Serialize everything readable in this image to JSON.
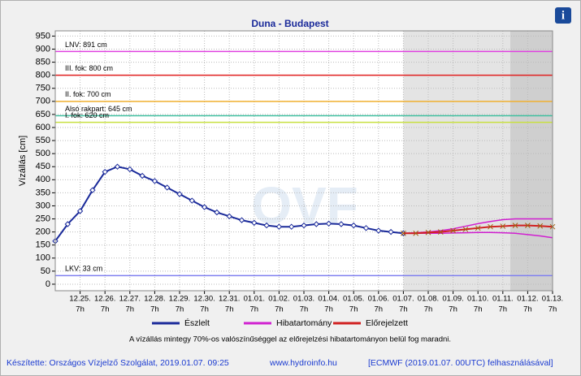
{
  "chart_data": {
    "type": "line",
    "title": "Duna - Budapest",
    "y_label": "Vízállás [cm]",
    "watermark": "OVF",
    "info_icon": "i",
    "xlim": [
      0,
      20
    ],
    "ylim": [
      -25,
      970
    ],
    "grid": true,
    "yticks": [
      0,
      50,
      100,
      150,
      200,
      250,
      300,
      350,
      400,
      450,
      500,
      550,
      600,
      650,
      700,
      750,
      800,
      850,
      900,
      950
    ],
    "xtick_sublabel": "7h",
    "xticks": [
      {
        "value": 1,
        "label": "12.25."
      },
      {
        "value": 2,
        "label": "12.26."
      },
      {
        "value": 3,
        "label": "12.27."
      },
      {
        "value": 4,
        "label": "12.28."
      },
      {
        "value": 5,
        "label": "12.29."
      },
      {
        "value": 6,
        "label": "12.30."
      },
      {
        "value": 7,
        "label": "12.31."
      },
      {
        "value": 8,
        "label": "01.01."
      },
      {
        "value": 9,
        "label": "01.02."
      },
      {
        "value": 10,
        "label": "01.03."
      },
      {
        "value": 11,
        "label": "01.04."
      },
      {
        "value": 12,
        "label": "01.05."
      },
      {
        "value": 13,
        "label": "01.06."
      },
      {
        "value": 14,
        "label": "01.07."
      },
      {
        "value": 15,
        "label": "01.08."
      },
      {
        "value": 16,
        "label": "01.09."
      },
      {
        "value": 17,
        "label": "01.10."
      },
      {
        "value": 18,
        "label": "01.11."
      },
      {
        "value": 19,
        "label": "01.12."
      },
      {
        "value": 20,
        "label": "01.13."
      }
    ],
    "shaded": [
      {
        "from": 14,
        "to": 20,
        "color": "#e4e4e4"
      },
      {
        "from": 18.3,
        "to": 20,
        "color": "#cfcfcf"
      }
    ],
    "levels": [
      {
        "label": "LNV: 891 cm",
        "value": 891,
        "color": "#e040e0"
      },
      {
        "label": "III. fok: 800 cm",
        "value": 800,
        "color": "#e02020"
      },
      {
        "label": "II. fok: 700 cm",
        "value": 700,
        "color": "#f0b030"
      },
      {
        "label": "Alsó rakpart: 645 cm",
        "value": 645,
        "color": "#40c0a0"
      },
      {
        "label": "I. fok: 620 cm",
        "value": 620,
        "color": "#c8e040"
      },
      {
        "label": "LKV: 33 cm",
        "value": 33,
        "color": "#8080f0"
      }
    ],
    "series": [
      {
        "name": "Észlelt",
        "color": "#1a2a9a",
        "x": [
          0,
          0.5,
          1,
          1.5,
          2,
          2.5,
          3,
          3.5,
          4,
          4.5,
          5,
          5.5,
          6,
          6.5,
          7,
          7.5,
          8,
          8.5,
          9,
          9.5,
          10,
          10.5,
          11,
          11.5,
          12,
          12.5,
          13,
          13.5,
          14
        ],
        "values": [
          165,
          230,
          280,
          360,
          430,
          450,
          440,
          415,
          395,
          370,
          345,
          320,
          295,
          275,
          260,
          245,
          235,
          225,
          220,
          220,
          225,
          230,
          232,
          230,
          225,
          215,
          205,
          200,
          195
        ]
      },
      {
        "name": "Hibatartomány",
        "color": "#d020d0",
        "x": [
          14,
          14.5,
          15,
          15.5,
          16,
          16.5,
          17,
          17.5,
          18,
          18.5,
          19,
          19.5,
          20
        ],
        "values": [
          195,
          197,
          200,
          205,
          212,
          222,
          232,
          240,
          247,
          250,
          250,
          250,
          250
        ],
        "low": [
          195,
          195,
          195,
          195,
          196,
          197,
          198,
          198,
          197,
          195,
          190,
          185,
          178
        ]
      },
      {
        "name": "Előrejelzett",
        "color": "#d02020",
        "x": [
          14,
          14.5,
          15,
          15.5,
          16,
          16.5,
          17,
          17.5,
          18,
          18.5,
          19,
          19.5,
          20
        ],
        "values": [
          195,
          195,
          198,
          200,
          205,
          210,
          215,
          220,
          222,
          225,
          225,
          223,
          220
        ]
      }
    ],
    "note": "A vízállás mintegy 70%-os valószínűséggel az előrejelzési hibatartományon belül fog maradni.",
    "footer": [
      "Készítette: Országos Vízjelző Szolgálat, 2019.01.07. 09:25",
      "www.hydroinfo.hu",
      "[ECMWF (2019.01.07. 00UTC) felhasználásával]"
    ]
  }
}
